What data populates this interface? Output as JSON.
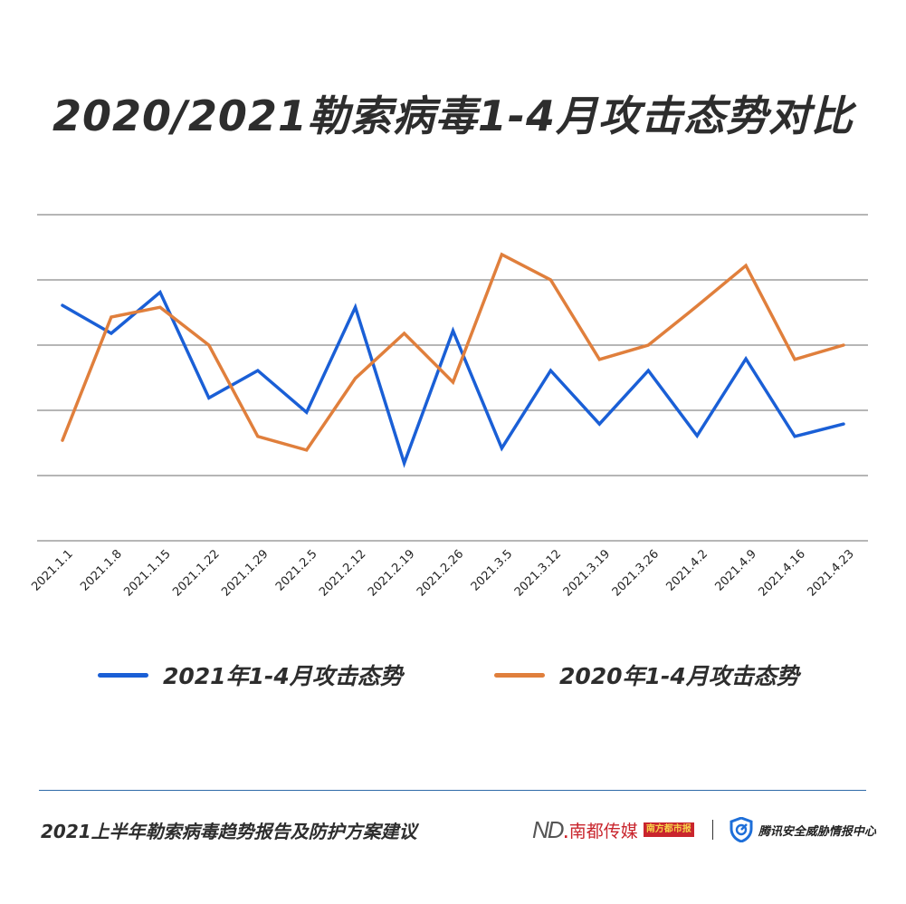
{
  "title": "2020/2021勒索病毒1-4月攻击态势对比",
  "colors": {
    "series_2021": "#1a5fd6",
    "series_2020": "#e07f3c",
    "gridline": "#8a8a8a",
    "footer_rule": "#2f6aa8"
  },
  "legend": {
    "items": [
      {
        "label": "2021年1-4月攻击态势",
        "color": "#1a5fd6"
      },
      {
        "label": "2020年1-4月攻击态势",
        "color": "#e07f3c"
      }
    ]
  },
  "footer": {
    "report_title": "2021上半年勒索病毒趋势报告及防护方案建议",
    "logo_nd_mark": "ND",
    "logo_nd_text": "南都传媒",
    "logo_paper": "南方都市报",
    "logo_tencent_text": "腾讯安全威胁情报中心"
  },
  "chart_data": {
    "type": "line",
    "title": "2020/2021勒索病毒1-4月攻击态势对比",
    "xlabel": "",
    "ylabel": "",
    "y_axis_labels_visible": false,
    "ylim": [
      0,
      5
    ],
    "y_units": "relative (gridline intervals; no numeric axis labels shown)",
    "grid": true,
    "legend_position": "bottom",
    "categories": [
      "2021.1.1",
      "2021.1.8",
      "2021.1.15",
      "2021.1.22",
      "2021.1.29",
      "2021.2.5",
      "2021.2.12",
      "2021.2.19",
      "2021.2.26",
      "2021.3.5",
      "2021.3.12",
      "2021.3.19",
      "2021.3.26",
      "2021.4.2",
      "2021.4.9",
      "2021.4.16",
      "2021.4.23"
    ],
    "series": [
      {
        "name": "2021年1-4月攻击态势",
        "color": "#1a5fd6",
        "values": [
          3.61,
          3.18,
          3.81,
          2.19,
          2.61,
          1.97,
          3.58,
          1.19,
          3.22,
          1.42,
          2.61,
          1.79,
          2.61,
          1.61,
          2.79,
          1.6,
          1.79
        ]
      },
      {
        "name": "2020年1-4月攻击态势",
        "color": "#e07f3c",
        "values": [
          1.54,
          3.43,
          3.58,
          3.0,
          1.6,
          1.39,
          2.49,
          3.18,
          2.43,
          4.39,
          4.0,
          2.78,
          3.0,
          3.6,
          4.22,
          2.78,
          3.0
        ]
      }
    ]
  }
}
